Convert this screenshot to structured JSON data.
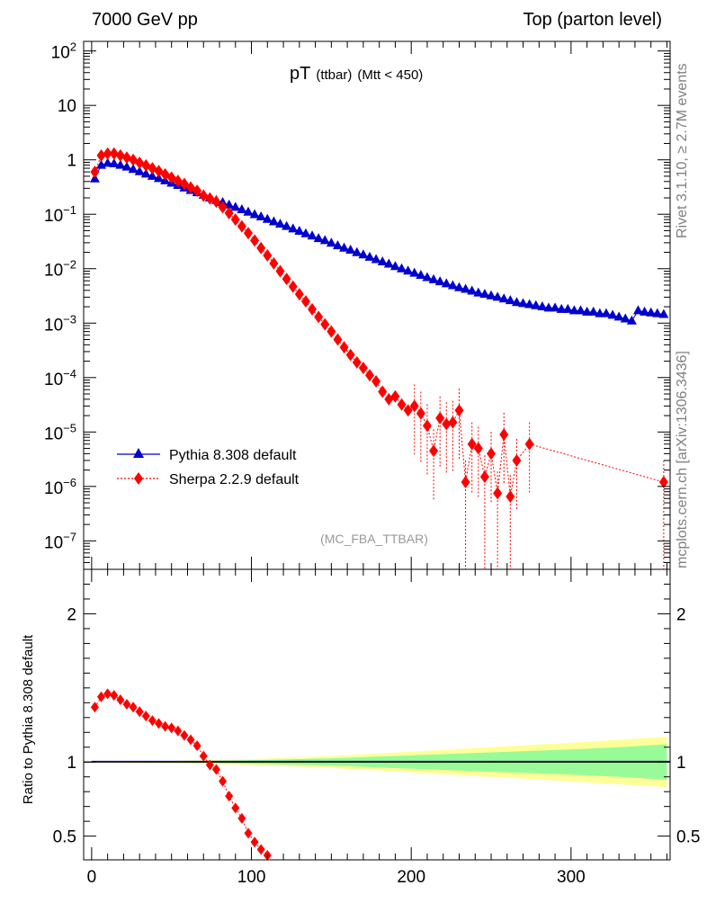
{
  "header": {
    "left": "7000 GeV pp",
    "right": "Top (parton level)"
  },
  "side_labels": {
    "rivet": "Rivet 3.1.10, ≥ 2.7M events",
    "mcplots": "mcplots.cern.ch [arXiv:1306.3436]"
  },
  "colors": {
    "pythia": "#0000cc",
    "sherpa": "#ff0000",
    "band_inner": "#98fb98",
    "band_outer": "#ffff99"
  },
  "chart_data": [
    {
      "type": "scatter",
      "title": "pT",
      "title_sub": "(ttbar)",
      "title_cut": "(Mtt < 450)",
      "watermark": "(MC_FBA_TTBAR)",
      "xlabel": "",
      "ylabel": "",
      "log_y": true,
      "xlim": [
        -5,
        362
      ],
      "ylim": [
        3e-08,
        150
      ],
      "x_ticks": [
        0,
        100,
        200,
        300
      ],
      "y_tick_labels": [
        "10^2",
        "10",
        "1",
        "10^-1",
        "10^-2",
        "10^-3",
        "10^-4",
        "10^-5",
        "10^-6",
        "10^-7"
      ],
      "legend_position": "bottom-left",
      "series": [
        {
          "name": "Pythia 8.308 default",
          "marker": "triangle",
          "x": [
            2,
            6,
            10,
            14,
            18,
            22,
            26,
            30,
            34,
            38,
            42,
            46,
            50,
            54,
            58,
            62,
            66,
            70,
            74,
            78,
            82,
            86,
            90,
            94,
            98,
            102,
            106,
            110,
            114,
            118,
            122,
            126,
            130,
            134,
            138,
            142,
            146,
            150,
            154,
            158,
            162,
            166,
            170,
            174,
            178,
            182,
            186,
            190,
            194,
            198,
            202,
            206,
            210,
            214,
            218,
            222,
            226,
            230,
            234,
            238,
            242,
            246,
            250,
            254,
            258,
            262,
            266,
            270,
            274,
            278,
            282,
            286,
            290,
            294,
            298,
            302,
            306,
            310,
            314,
            318,
            322,
            326,
            330,
            334,
            338,
            342,
            346,
            350,
            354,
            358
          ],
          "y": [
            0.45,
            0.8,
            0.87,
            0.85,
            0.8,
            0.74,
            0.67,
            0.61,
            0.55,
            0.5,
            0.455,
            0.415,
            0.375,
            0.34,
            0.305,
            0.275,
            0.25,
            0.225,
            0.2,
            0.18,
            0.165,
            0.148,
            0.135,
            0.122,
            0.11,
            0.099,
            0.09,
            0.081,
            0.073,
            0.066,
            0.06,
            0.054,
            0.049,
            0.044,
            0.04,
            0.036,
            0.033,
            0.0295,
            0.0265,
            0.024,
            0.022,
            0.0198,
            0.018,
            0.0163,
            0.0148,
            0.0134,
            0.0122,
            0.011,
            0.01,
            0.0091,
            0.0083,
            0.0076,
            0.0069,
            0.0063,
            0.0058,
            0.0053,
            0.0049,
            0.0045,
            0.0042,
            0.0039,
            0.0036,
            0.0034,
            0.0032,
            0.003,
            0.0028,
            0.0026,
            0.0024,
            0.0023,
            0.0022,
            0.0021,
            0.002,
            0.0019,
            0.0019,
            0.0018,
            0.0018,
            0.0017,
            0.0017,
            0.0016,
            0.0016,
            0.0015,
            0.0015,
            0.0014,
            0.0013,
            0.0012,
            0.0011,
            0.0017,
            0.0016,
            0.00155,
            0.0015,
            0.00145
          ]
        },
        {
          "name": "Sherpa 2.2.9 default",
          "marker": "diamond",
          "x": [
            2,
            6,
            10,
            14,
            18,
            22,
            26,
            30,
            34,
            38,
            42,
            46,
            50,
            54,
            58,
            62,
            66,
            70,
            74,
            78,
            82,
            86,
            90,
            94,
            98,
            102,
            106,
            110,
            114,
            118,
            122,
            126,
            130,
            134,
            138,
            142,
            146,
            150,
            154,
            158,
            162,
            166,
            170,
            174,
            178,
            182,
            186,
            190,
            194,
            198,
            202,
            206,
            210,
            214,
            218,
            222,
            226,
            230,
            234,
            238,
            242,
            246,
            250,
            254,
            258,
            262,
            266,
            274,
            358
          ],
          "y": [
            0.6,
            1.2,
            1.3,
            1.3,
            1.2,
            1.1,
            1.0,
            0.88,
            0.79,
            0.7,
            0.62,
            0.54,
            0.47,
            0.41,
            0.36,
            0.31,
            0.27,
            0.22,
            0.195,
            0.17,
            0.135,
            0.105,
            0.08,
            0.06,
            0.045,
            0.033,
            0.024,
            0.0175,
            0.0125,
            0.009,
            0.0065,
            0.0047,
            0.0034,
            0.0025,
            0.0018,
            0.0013,
            0.00095,
            0.0007,
            0.0005,
            0.00036,
            0.00026,
            0.00019,
            0.00015,
            0.00011,
            8.5e-05,
            5.5e-05,
            4e-05,
            4.5e-05,
            3.2e-05,
            2.5e-05,
            3e-05,
            2.2e-05,
            1.3e-05,
            4.5e-06,
            1.8e-05,
            1.4e-05,
            1.5e-05,
            2.5e-05,
            1.2e-06,
            6e-06,
            5e-06,
            1.5e-06,
            4e-06,
            7.5e-07,
            9e-06,
            6.5e-07,
            3e-06,
            6e-06,
            1.2e-06
          ]
        }
      ]
    },
    {
      "type": "scatter",
      "title": "",
      "ylabel": "Ratio to Pythia 8.308 default",
      "xlim": [
        -5,
        362
      ],
      "ylim": [
        0.34,
        2.3
      ],
      "x_ticks": [
        0,
        100,
        200,
        300
      ],
      "y_ticks": [
        0.5,
        1,
        2
      ],
      "y_tick_labels": [
        "0.5",
        "1",
        "2"
      ],
      "reference_line": 1,
      "band": {
        "x": [
          0,
          50,
          100,
          150,
          200,
          250,
          300,
          330,
          360
        ],
        "inner_half_width": [
          0.0,
          0.005,
          0.012,
          0.025,
          0.045,
          0.065,
          0.085,
          0.1,
          0.12
        ],
        "outer_half_width": [
          0.0,
          0.008,
          0.02,
          0.04,
          0.07,
          0.1,
          0.13,
          0.15,
          0.17
        ]
      },
      "series": [
        {
          "name": "Sherpa 2.2.9 default",
          "marker": "diamond",
          "x": [
            2,
            6,
            10,
            14,
            18,
            22,
            26,
            30,
            34,
            38,
            42,
            46,
            50,
            54,
            58,
            62,
            66,
            70,
            74,
            78,
            82,
            86,
            90,
            94,
            98,
            102,
            106,
            110
          ],
          "y": [
            1.37,
            1.44,
            1.46,
            1.45,
            1.42,
            1.39,
            1.37,
            1.34,
            1.31,
            1.28,
            1.26,
            1.24,
            1.23,
            1.21,
            1.18,
            1.15,
            1.11,
            1.04,
            0.98,
            0.95,
            0.87,
            0.77,
            0.69,
            0.62,
            0.52,
            0.46,
            0.41,
            0.37
          ]
        }
      ]
    }
  ]
}
